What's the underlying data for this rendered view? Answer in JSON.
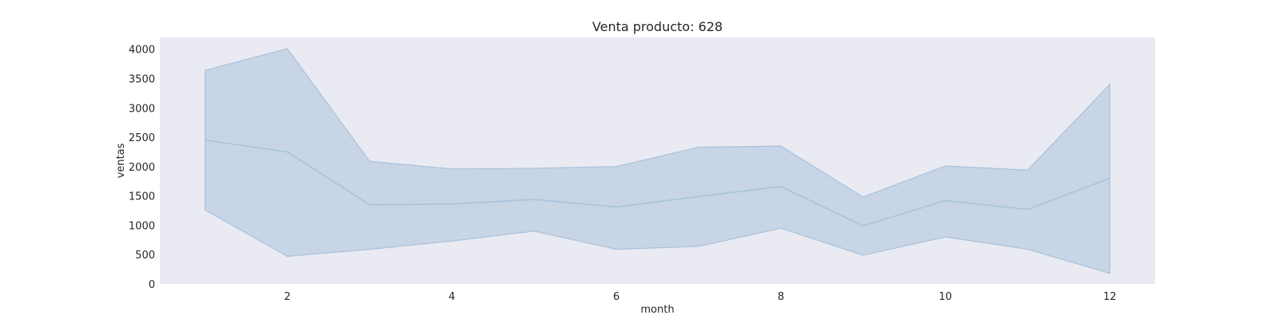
{
  "chart_data": {
    "type": "line",
    "title": "Venta producto: 628",
    "xlabel": "month",
    "ylabel": "ventas",
    "xlim": [
      0.45,
      12.55
    ],
    "ylim": [
      0,
      4200
    ],
    "xticks": [
      2,
      4,
      6,
      8,
      10,
      12
    ],
    "yticks": [
      0,
      500,
      1000,
      1500,
      2000,
      2500,
      3000,
      3500,
      4000
    ],
    "grid": false,
    "legend": "none",
    "series": [
      {
        "x": [
          1,
          2,
          3,
          4,
          5,
          6,
          7,
          8,
          9,
          10,
          11,
          12
        ],
        "values": [
          2450,
          2250,
          1350,
          1360,
          1440,
          1310,
          1490,
          1660,
          990,
          1420,
          1270,
          1800
        ],
        "lower": [
          1260,
          470,
          590,
          730,
          900,
          590,
          640,
          950,
          490,
          800,
          590,
          180
        ],
        "upper": [
          3640,
          4010,
          2090,
          1960,
          1970,
          2000,
          2330,
          2350,
          1480,
          2010,
          1940,
          3400
        ],
        "color": "#4c72b0",
        "band_color": "#a9c2dc"
      }
    ],
    "background": "#eaeaf2"
  }
}
